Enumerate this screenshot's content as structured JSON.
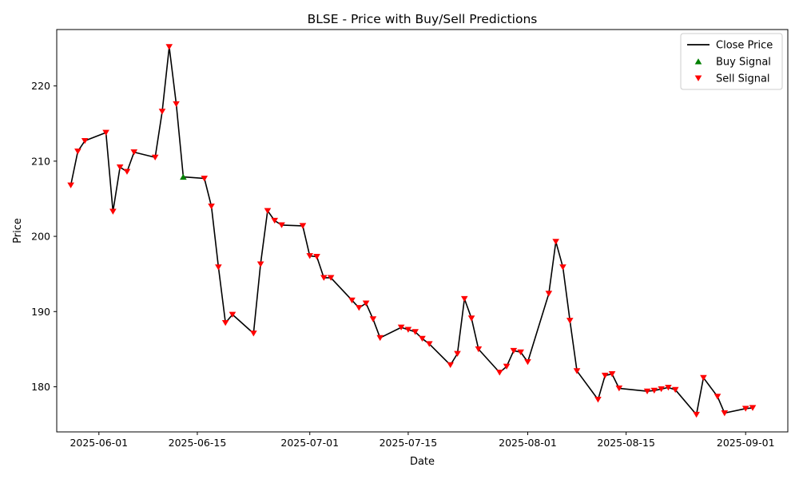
{
  "chart_data": {
    "type": "line",
    "title": "BLSE - Price with Buy/Sell Predictions",
    "xlabel": "Date",
    "ylabel": "Price",
    "xlim": [
      "2025-05-26",
      "2025-09-07"
    ],
    "ylim": [
      174.0,
      227.5
    ],
    "x_ticks": [
      "2025-06-01",
      "2025-06-15",
      "2025-07-01",
      "2025-07-15",
      "2025-08-01",
      "2025-08-15",
      "2025-09-01"
    ],
    "y_ticks": [
      180,
      190,
      200,
      210,
      220
    ],
    "grid": false,
    "legend_position": "upper-right",
    "series": [
      {
        "name": "Close Price",
        "kind": "line",
        "color": "#000000",
        "points": [
          [
            "2025-05-28",
            206.8
          ],
          [
            "2025-05-29",
            211.3
          ],
          [
            "2025-05-30",
            212.7
          ],
          [
            "2025-06-02",
            213.8
          ],
          [
            "2025-06-03",
            203.3
          ],
          [
            "2025-06-04",
            209.2
          ],
          [
            "2025-06-05",
            208.6
          ],
          [
            "2025-06-06",
            211.2
          ],
          [
            "2025-06-09",
            210.5
          ],
          [
            "2025-06-10",
            216.6
          ],
          [
            "2025-06-11",
            225.2
          ],
          [
            "2025-06-12",
            217.6
          ],
          [
            "2025-06-13",
            207.9
          ],
          [
            "2025-06-16",
            207.7
          ],
          [
            "2025-06-17",
            204.0
          ],
          [
            "2025-06-18",
            195.9
          ],
          [
            "2025-06-19",
            188.5
          ],
          [
            "2025-06-20",
            189.6
          ],
          [
            "2025-06-23",
            187.1
          ],
          [
            "2025-06-24",
            196.3
          ],
          [
            "2025-06-25",
            203.4
          ],
          [
            "2025-06-26",
            202.1
          ],
          [
            "2025-06-27",
            201.5
          ],
          [
            "2025-06-30",
            201.4
          ],
          [
            "2025-07-01",
            197.4
          ],
          [
            "2025-07-02",
            197.3
          ],
          [
            "2025-07-03",
            194.5
          ],
          [
            "2025-07-04",
            194.5
          ],
          [
            "2025-07-07",
            191.5
          ],
          [
            "2025-07-08",
            190.5
          ],
          [
            "2025-07-09",
            191.1
          ],
          [
            "2025-07-10",
            189.0
          ],
          [
            "2025-07-11",
            186.5
          ],
          [
            "2025-07-14",
            187.9
          ],
          [
            "2025-07-15",
            187.6
          ],
          [
            "2025-07-16",
            187.3
          ],
          [
            "2025-07-17",
            186.4
          ],
          [
            "2025-07-18",
            185.7
          ],
          [
            "2025-07-21",
            182.9
          ],
          [
            "2025-07-22",
            184.4
          ],
          [
            "2025-07-23",
            191.7
          ],
          [
            "2025-07-24",
            189.1
          ],
          [
            "2025-07-25",
            185.0
          ],
          [
            "2025-07-28",
            181.9
          ],
          [
            "2025-07-29",
            182.7
          ],
          [
            "2025-07-30",
            184.8
          ],
          [
            "2025-07-31",
            184.6
          ],
          [
            "2025-08-01",
            183.3
          ],
          [
            "2025-08-04",
            192.4
          ],
          [
            "2025-08-05",
            199.3
          ],
          [
            "2025-08-06",
            195.9
          ],
          [
            "2025-08-07",
            188.8
          ],
          [
            "2025-08-08",
            182.1
          ],
          [
            "2025-08-11",
            178.3
          ],
          [
            "2025-08-12",
            181.5
          ],
          [
            "2025-08-13",
            181.7
          ],
          [
            "2025-08-14",
            179.8
          ],
          [
            "2025-08-18",
            179.4
          ],
          [
            "2025-08-19",
            179.5
          ],
          [
            "2025-08-20",
            179.7
          ],
          [
            "2025-08-21",
            179.9
          ],
          [
            "2025-08-22",
            179.6
          ],
          [
            "2025-08-25",
            176.3
          ],
          [
            "2025-08-26",
            181.2
          ],
          [
            "2025-08-28",
            178.7
          ],
          [
            "2025-08-29",
            176.5
          ],
          [
            "2025-09-01",
            177.1
          ],
          [
            "2025-09-02",
            177.2
          ]
        ]
      },
      {
        "name": "Buy Signal",
        "kind": "marker",
        "marker": "triangle-up",
        "color": "#008000",
        "points": [
          [
            "2025-06-13",
            207.9
          ]
        ]
      },
      {
        "name": "Sell Signal",
        "kind": "marker",
        "marker": "triangle-down",
        "color": "#ff0000",
        "points": "all-close-points-except-buy"
      }
    ]
  }
}
